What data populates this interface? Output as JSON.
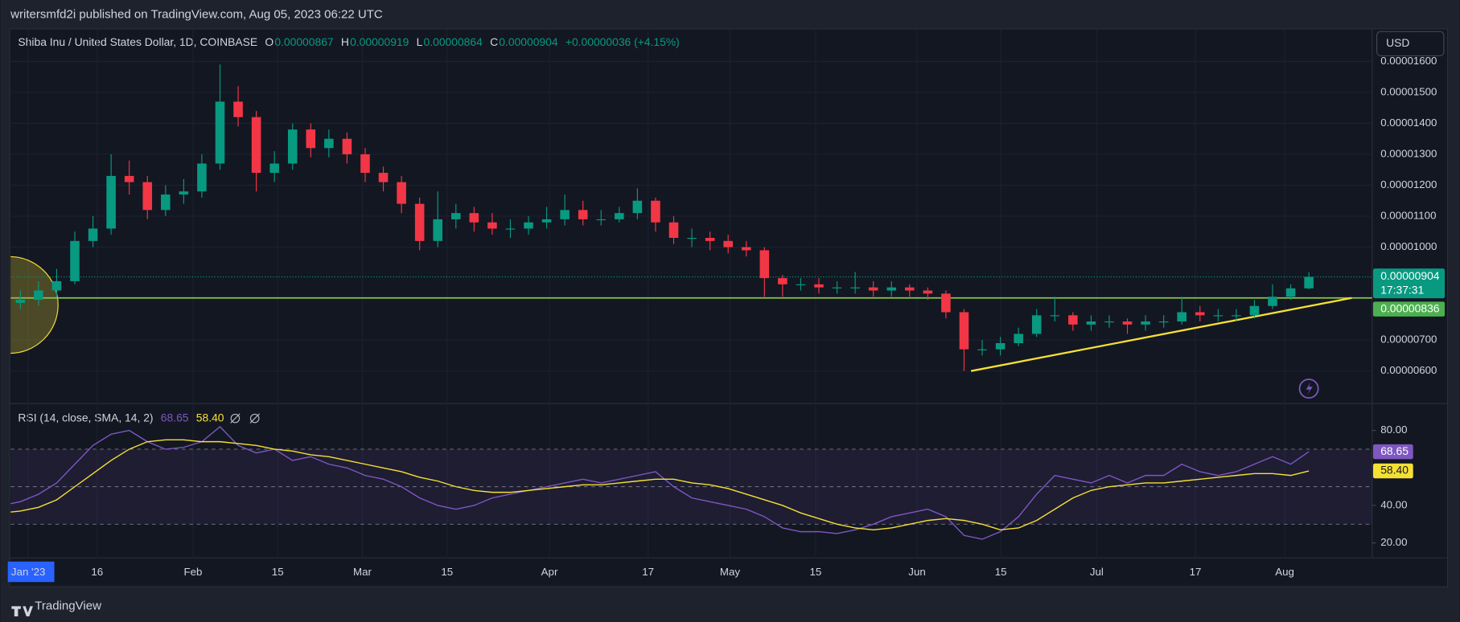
{
  "header": {
    "publisher": "writersmfd2i published on TradingView.com, Aug 05, 2023 06:22 UTC",
    "footer": "TradingView"
  },
  "chart_data": {
    "type": "candlestick",
    "title": "Shiba Inu / United States Dollar, 1D, COINBASE",
    "ohlc_legend": [
      {
        "label": "O",
        "value": "0.00000867"
      },
      {
        "label": "H",
        "value": "0.00000919"
      },
      {
        "label": "L",
        "value": "0.00000864"
      },
      {
        "label": "C",
        "value": "0.00000904"
      }
    ],
    "change": "+0.00000036 (+4.15%)",
    "currency": "USD",
    "up_color": "#089981",
    "down_color": "#f23645",
    "open": [
      8.1e-06,
      8.2e-06,
      8.3e-06,
      8.6e-06,
      8.9e-06,
      1.02e-05,
      1.06e-05,
      1.23e-05,
      1.21e-05,
      1.12e-05,
      1.17e-05,
      1.18e-05,
      1.27e-05,
      1.47e-05,
      1.42e-05,
      1.24e-05,
      1.27e-05,
      1.38e-05,
      1.32e-05,
      1.35e-05,
      1.3e-05,
      1.24e-05,
      1.21e-05,
      1.14e-05,
      1.02e-05,
      1.09e-05,
      1.11e-05,
      1.08e-05,
      1.06e-05,
      1.06e-05,
      1.08e-05,
      1.09e-05,
      1.12e-05,
      1.09e-05,
      1.09e-05,
      1.11e-05,
      1.15e-05,
      1.08e-05,
      1.03e-05,
      1.03e-05,
      1.02e-05,
      1e-05,
      9.9e-06,
      9e-06,
      8.8e-06,
      8.8e-06,
      8.7e-06,
      8.7e-06,
      8.7e-06,
      8.6e-06,
      8.7e-06,
      8.6e-06,
      8.5e-06,
      7.9e-06,
      6.7e-06,
      6.7e-06,
      6.9e-06,
      7.2e-06,
      7.8e-06,
      7.8e-06,
      7.5e-06,
      7.6e-06,
      7.6e-06,
      7.5e-06,
      7.6e-06,
      7.6e-06,
      7.9e-06,
      7.8e-06,
      7.8e-06,
      7.8e-06,
      8.1e-06,
      8.4e-06,
      8.67e-06
    ],
    "high": [
      8.5e-06,
      8.6e-06,
      8.9e-06,
      9.3e-06,
      1.05e-05,
      1.1e-05,
      1.3e-05,
      1.28e-05,
      1.23e-05,
      1.2e-05,
      1.22e-05,
      1.3e-05,
      1.59e-05,
      1.52e-05,
      1.44e-05,
      1.31e-05,
      1.4e-05,
      1.4e-05,
      1.38e-05,
      1.37e-05,
      1.32e-05,
      1.26e-05,
      1.23e-05,
      1.16e-05,
      1.18e-05,
      1.14e-05,
      1.13e-05,
      1.11e-05,
      1.09e-05,
      1.1e-05,
      1.13e-05,
      1.17e-05,
      1.15e-05,
      1.12e-05,
      1.13e-05,
      1.19e-05,
      1.16e-05,
      1.1e-05,
      1.06e-05,
      1.05e-05,
      1.04e-05,
      1.02e-05,
      1e-05,
      9.1e-06,
      9e-06,
      9e-06,
      8.9e-06,
      9.2e-06,
      8.9e-06,
      8.9e-06,
      8.8e-06,
      8.7e-06,
      8.6e-06,
      8e-06,
      7e-06,
      7.1e-06,
      7.4e-06,
      8e-06,
      8.4e-06,
      7.9e-06,
      7.8e-06,
      7.8e-06,
      7.7e-06,
      7.8e-06,
      7.8e-06,
      8.4e-06,
      8.1e-06,
      8e-06,
      8e-06,
      8.3e-06,
      8.8e-06,
      8.8e-06,
      9.19e-06
    ],
    "low": [
      7.9e-06,
      8e-06,
      8.1e-06,
      8.4e-06,
      8.8e-06,
      1e-05,
      1.04e-05,
      1.17e-05,
      1.09e-05,
      1.1e-05,
      1.14e-05,
      1.16e-05,
      1.25e-05,
      1.39e-05,
      1.18e-05,
      1.21e-05,
      1.25e-05,
      1.29e-05,
      1.29e-05,
      1.27e-05,
      1.21e-05,
      1.18e-05,
      1.11e-05,
      9.9e-06,
      1e-05,
      1.06e-05,
      1.05e-05,
      1.04e-05,
      1.03e-05,
      1.04e-05,
      1.06e-05,
      1.07e-05,
      1.07e-05,
      1.07e-05,
      1.08e-05,
      1.09e-05,
      1.05e-05,
      1.01e-05,
      1e-05,
      9.9e-06,
      9.8e-06,
      9.7e-06,
      8.4e-06,
      8.4e-06,
      8.6e-06,
      8.5e-06,
      8.5e-06,
      8.5e-06,
      8.4e-06,
      8.4e-06,
      8.4e-06,
      8.3e-06,
      7.7e-06,
      6e-06,
      6.5e-06,
      6.5e-06,
      6.8e-06,
      7.1e-06,
      7.6e-06,
      7.3e-06,
      7.3e-06,
      7.4e-06,
      7.2e-06,
      7.3e-06,
      7.4e-06,
      7.5e-06,
      7.6e-06,
      7.6e-06,
      7.6e-06,
      7.7e-06,
      8e-06,
      8.3e-06,
      8.64e-06
    ],
    "close": [
      8.2e-06,
      8.3e-06,
      8.6e-06,
      8.9e-06,
      1.02e-05,
      1.06e-05,
      1.23e-05,
      1.21e-05,
      1.12e-05,
      1.17e-05,
      1.18e-05,
      1.27e-05,
      1.47e-05,
      1.42e-05,
      1.24e-05,
      1.27e-05,
      1.38e-05,
      1.32e-05,
      1.35e-05,
      1.3e-05,
      1.24e-05,
      1.21e-05,
      1.14e-05,
      1.02e-05,
      1.09e-05,
      1.11e-05,
      1.08e-05,
      1.06e-05,
      1.06e-05,
      1.08e-05,
      1.09e-05,
      1.12e-05,
      1.09e-05,
      1.09e-05,
      1.11e-05,
      1.15e-05,
      1.08e-05,
      1.03e-05,
      1.03e-05,
      1.02e-05,
      1e-05,
      9.9e-06,
      9e-06,
      8.8e-06,
      8.8e-06,
      8.7e-06,
      8.7e-06,
      8.7e-06,
      8.6e-06,
      8.7e-06,
      8.6e-06,
      8.5e-06,
      7.9e-06,
      6.7e-06,
      6.7e-06,
      6.9e-06,
      7.2e-06,
      7.8e-06,
      7.8e-06,
      7.5e-06,
      7.6e-06,
      7.6e-06,
      7.5e-06,
      7.6e-06,
      7.6e-06,
      7.9e-06,
      7.8e-06,
      7.8e-06,
      7.8e-06,
      8.1e-06,
      8.4e-06,
      8.67e-06,
      9.04e-06
    ],
    "ylim": [
      5.5e-06,
      1.67e-05
    ],
    "yticks": [
      {
        "value": 6e-06,
        "label": "0.00000600"
      },
      {
        "value": 7e-06,
        "label": "0.00000700"
      },
      {
        "value": 1e-05,
        "label": "0.00001000"
      },
      {
        "value": 1.1e-05,
        "label": "0.00001100"
      },
      {
        "value": 1.2e-05,
        "label": "0.00001200"
      },
      {
        "value": 1.3e-05,
        "label": "0.00001300"
      },
      {
        "value": 1.4e-05,
        "label": "0.00001400"
      },
      {
        "value": 1.5e-05,
        "label": "0.00001500"
      },
      {
        "value": 1.6e-05,
        "label": "0.00001600"
      }
    ],
    "price_badge": {
      "value": 9.04e-06,
      "label": "0.00000904",
      "countdown": "17:37:31"
    },
    "level_line": {
      "value": 8.36e-06,
      "label": "0.00000836",
      "color": "#8bc34a"
    },
    "trend_line": {
      "start": 6e-06,
      "end": 8.36e-06,
      "color": "#f7e034"
    },
    "x_labels": [
      "Jan '23",
      "16",
      "Feb",
      "15",
      "Mar",
      "15",
      "Apr",
      "17",
      "May",
      "15",
      "Jun",
      "15",
      "Jul",
      "17",
      "Aug"
    ],
    "rsi": {
      "title": "RSI (14, close, SMA, 14, 2)",
      "ylim": [
        12,
        90
      ],
      "yticks": [
        {
          "value": 80,
          "label": "80.00"
        },
        {
          "value": 40,
          "label": "40.00"
        },
        {
          "value": 20,
          "label": "20.00"
        }
      ],
      "bands": [
        70,
        50,
        30
      ],
      "series": [
        {
          "color": "#7e57c2",
          "last_label": "68.65",
          "values": [
            40,
            42,
            46,
            52,
            62,
            72,
            78,
            80,
            74,
            70,
            71,
            74,
            82,
            72,
            68,
            70,
            64,
            66,
            62,
            60,
            56,
            54,
            50,
            44,
            40,
            38,
            40,
            44,
            46,
            48,
            50,
            52,
            54,
            52,
            54,
            56,
            58,
            50,
            44,
            42,
            40,
            38,
            34,
            28,
            26,
            26,
            25,
            27,
            30,
            34,
            36,
            38,
            34,
            24,
            22,
            26,
            34,
            46,
            56,
            54,
            52,
            56,
            52,
            56,
            56,
            62,
            58,
            56,
            58,
            62,
            66,
            62,
            68.65
          ]
        },
        {
          "color": "#f7e034",
          "last_label": "58.40",
          "values": [
            36,
            37,
            39,
            43,
            50,
            57,
            64,
            70,
            74,
            75,
            75,
            74,
            74,
            73,
            72,
            70,
            69,
            67,
            66,
            64,
            62,
            60,
            58,
            55,
            53,
            50,
            48,
            47,
            47,
            48,
            49,
            50,
            51,
            51,
            52,
            53,
            54,
            54,
            52,
            51,
            49,
            46,
            43,
            40,
            36,
            33,
            30,
            28,
            27,
            28,
            30,
            32,
            33,
            32,
            30,
            27,
            28,
            32,
            38,
            44,
            48,
            50,
            51,
            52,
            52,
            53,
            54,
            55,
            56,
            57,
            57,
            56,
            58.4
          ]
        }
      ]
    }
  }
}
